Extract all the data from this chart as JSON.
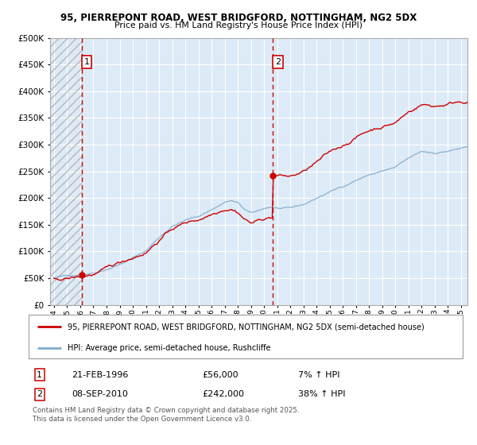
{
  "title1": "95, PIERREPONT ROAD, WEST BRIDGFORD, NOTTINGHAM, NG2 5DX",
  "title2": "Price paid vs. HM Land Registry's House Price Index (HPI)",
  "legend_line1": "95, PIERREPONT ROAD, WEST BRIDGFORD, NOTTINGHAM, NG2 5DX (semi-detached house)",
  "legend_line2": "HPI: Average price, semi-detached house, Rushcliffe",
  "annotation1_date": "21-FEB-1996",
  "annotation1_price": "£56,000",
  "annotation1_hpi": "7% ↑ HPI",
  "annotation2_date": "08-SEP-2010",
  "annotation2_price": "£242,000",
  "annotation2_hpi": "38% ↑ HPI",
  "footnote": "Contains HM Land Registry data © Crown copyright and database right 2025.\nThis data is licensed under the Open Government Licence v3.0.",
  "bg_color": "#ddeaf7",
  "grid_color": "#ffffff",
  "red_line_color": "#cc0000",
  "blue_line_color": "#7faacc",
  "dashed_line_color": "#cc0000",
  "ylim": [
    0,
    500000
  ],
  "yticks": [
    0,
    50000,
    100000,
    150000,
    200000,
    250000,
    300000,
    350000,
    400000,
    450000,
    500000
  ],
  "xlim_start": 1993.7,
  "xlim_end": 2025.5,
  "purchase1_x": 1996.13,
  "purchase1_y": 56000,
  "purchase2_x": 2010.69,
  "purchase2_y": 242000
}
